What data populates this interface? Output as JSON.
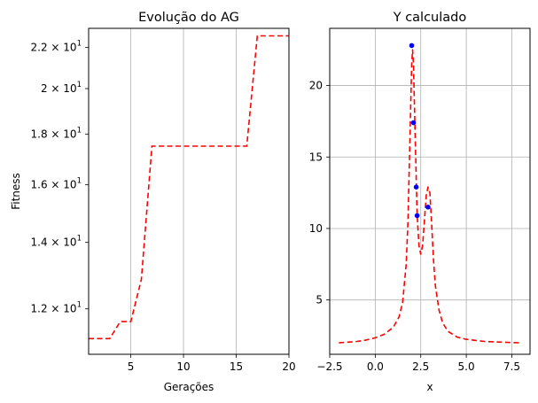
{
  "colors": {
    "line": "#ff0000",
    "points": "#0000ff",
    "grid": "#b0b0b0",
    "axes": "#000000"
  },
  "chart_data": [
    {
      "type": "line",
      "title": "Evolução do AG",
      "xlabel": "Gerações",
      "ylabel": "Fitness",
      "yscale": "log",
      "grid": true,
      "line_style": "dashed",
      "xlim": [
        1,
        20
      ],
      "ylim": [
        10.8,
        23.0
      ],
      "xticks": [
        5,
        10,
        15,
        20
      ],
      "xtick_labels": [
        "5",
        "10",
        "15",
        "20"
      ],
      "yticks": [
        12,
        14,
        16,
        18,
        20,
        22
      ],
      "ytick_labels": [
        {
          "base": "1.2 × 10",
          "exp": "1"
        },
        {
          "base": "1.4 × 10",
          "exp": "1"
        },
        {
          "base": "1.6 × 10",
          "exp": "1"
        },
        {
          "base": "1.8 × 10",
          "exp": "1"
        },
        {
          "base": "2 × 10",
          "exp": "1"
        },
        {
          "base": "2.2 × 10",
          "exp": "1"
        }
      ],
      "x": [
        1,
        2,
        3,
        4,
        5,
        6,
        7,
        8,
        9,
        10,
        11,
        12,
        13,
        14,
        15,
        16,
        17,
        18,
        19,
        20
      ],
      "series": [
        {
          "values": [
            11.2,
            11.2,
            11.2,
            11.65,
            11.65,
            12.85,
            17.5,
            17.5,
            17.5,
            17.5,
            17.5,
            17.5,
            17.5,
            17.5,
            17.5,
            17.5,
            22.6,
            22.6,
            22.6,
            22.6
          ]
        }
      ]
    },
    {
      "type": "line",
      "title": "Y calculado",
      "xlabel": "x",
      "ylabel": "",
      "grid": true,
      "xlim": [
        -2.5,
        8.5
      ],
      "ylim": [
        1.2,
        24.0
      ],
      "xticks": [
        -2.5,
        0.0,
        2.5,
        5.0,
        7.5
      ],
      "xtick_labels": [
        "−2.5",
        "0.0",
        "2.5",
        "5.0",
        "7.5"
      ],
      "yticks": [
        5,
        10,
        15,
        20
      ],
      "ytick_labels": [
        "5",
        "10",
        "15",
        "20"
      ],
      "curve": {
        "style": "dashed",
        "x": [
          -2.0,
          -1.5,
          -1.0,
          -0.5,
          0.0,
          0.5,
          1.0,
          1.3,
          1.5,
          1.7,
          1.8,
          1.9,
          2.0,
          2.05,
          2.1,
          2.2,
          2.3,
          2.4,
          2.5,
          2.6,
          2.7,
          2.8,
          2.9,
          3.0,
          3.1,
          3.2,
          3.3,
          3.5,
          3.7,
          4.0,
          4.5,
          5.0,
          6.0,
          7.0,
          8.0
        ],
        "y": [
          2.0,
          2.05,
          2.1,
          2.2,
          2.35,
          2.6,
          3.1,
          3.8,
          4.8,
          7.5,
          10.5,
          16.0,
          21.5,
          22.5,
          21.5,
          16.0,
          11.0,
          8.8,
          8.2,
          8.8,
          10.5,
          12.3,
          12.9,
          12.5,
          10.2,
          7.8,
          6.0,
          4.3,
          3.4,
          2.8,
          2.4,
          2.25,
          2.1,
          2.05,
          2.0
        ]
      },
      "points": {
        "x": [
          2.0,
          2.1,
          2.25,
          2.3,
          2.9
        ],
        "y": [
          22.8,
          17.4,
          12.9,
          10.9,
          11.5
        ]
      }
    }
  ]
}
